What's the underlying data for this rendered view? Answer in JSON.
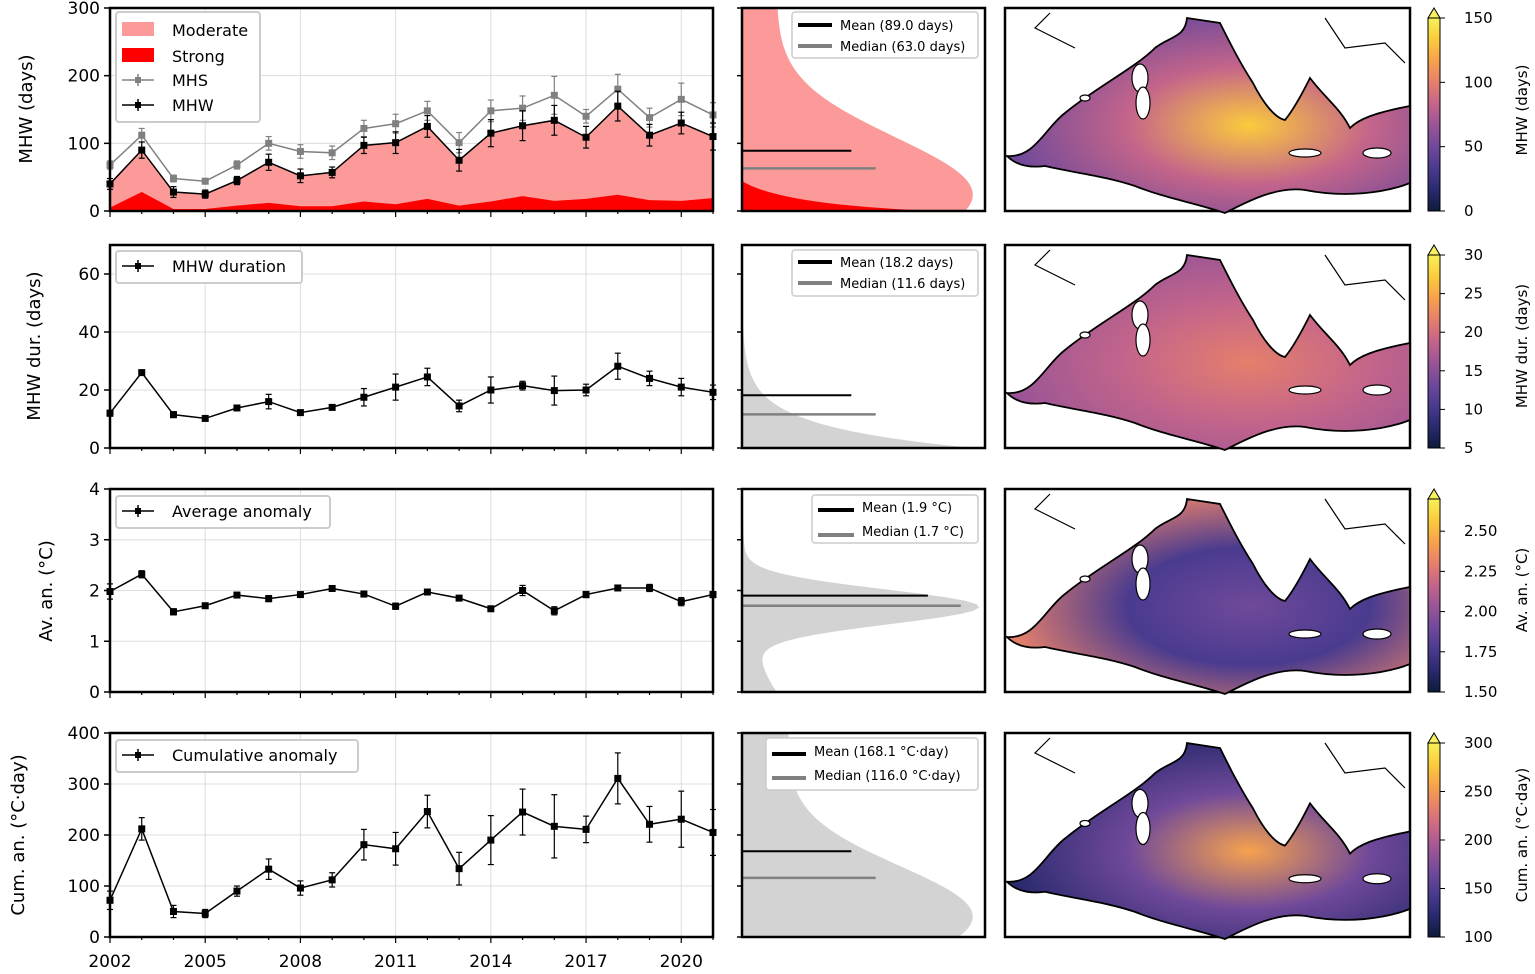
{
  "colors": {
    "moderate": "#fb9a99",
    "strong": "#ff0000",
    "mhs": "#808080",
    "mhw": "#000000",
    "hist_grey": "#d3d3d3",
    "mean_line": "#000000",
    "median_line": "#808080",
    "land": "#ffffff",
    "coast": "#000000"
  },
  "colormap": [
    "#0d1b3a",
    "#2a2a6e",
    "#4a3b8f",
    "#70499a",
    "#9a5596",
    "#c4658a",
    "#e57f6c",
    "#f6a24d",
    "#fbcb3c",
    "#f6f15a"
  ],
  "x_ticks": [
    "2002",
    "2005",
    "2008",
    "2011",
    "2014",
    "2017",
    "2020"
  ],
  "chart_data": [
    {
      "type": "area",
      "id": "mhw_days",
      "title": "",
      "ylabel": "MHW (days)",
      "ylim": [
        0,
        300
      ],
      "yticks": [
        "0",
        "100",
        "200",
        "300"
      ],
      "x": [
        2002,
        2003,
        2004,
        2005,
        2006,
        2007,
        2008,
        2009,
        2010,
        2011,
        2012,
        2013,
        2014,
        2015,
        2016,
        2017,
        2018,
        2019,
        2020,
        2021
      ],
      "legend": [
        "Moderate",
        "Strong",
        "MHS",
        "MHW"
      ],
      "series": [
        {
          "name": "Moderate",
          "values": [
            40,
            90,
            28,
            25,
            45,
            72,
            52,
            57,
            97,
            101,
            125,
            75,
            115,
            126,
            134,
            109,
            155,
            112,
            130,
            110
          ]
        },
        {
          "name": "Strong",
          "values": [
            5,
            28,
            3,
            3,
            8,
            12,
            7,
            7,
            14,
            10,
            18,
            8,
            14,
            22,
            15,
            18,
            24,
            16,
            15,
            19
          ]
        },
        {
          "name": "MHS",
          "values": [
            68,
            112,
            48,
            44,
            68,
            100,
            88,
            86,
            122,
            129,
            148,
            101,
            148,
            152,
            171,
            140,
            180,
            138,
            165,
            142
          ],
          "errors": [
            6,
            10,
            5,
            4,
            6,
            10,
            10,
            10,
            12,
            14,
            14,
            15,
            16,
            18,
            28,
            10,
            22,
            14,
            24,
            18
          ]
        },
        {
          "name": "MHW",
          "values": [
            40,
            90,
            28,
            25,
            45,
            72,
            52,
            57,
            97,
            101,
            125,
            75,
            115,
            126,
            134,
            109,
            155,
            112,
            130,
            110
          ],
          "errors": [
            8,
            12,
            8,
            6,
            6,
            12,
            10,
            8,
            12,
            16,
            16,
            16,
            20,
            22,
            22,
            16,
            22,
            16,
            16,
            20
          ]
        }
      ],
      "histogram": {
        "mean_label": "Mean (89.0 days)",
        "median_label": "Median (63.0 days)",
        "mean": 89.0,
        "median": 63.0
      },
      "map": {
        "colorbar_label": "MHW (days)",
        "cbar_ticks": [
          "0",
          "50",
          "100",
          "150"
        ],
        "cbar_min": 0,
        "cbar_max": 150
      }
    },
    {
      "type": "line",
      "id": "mhw_duration",
      "ylabel": "MHW dur. (days)",
      "ylim": [
        0,
        70
      ],
      "yticks": [
        "0",
        "20",
        "40",
        "60"
      ],
      "x": [
        2002,
        2003,
        2004,
        2005,
        2006,
        2007,
        2008,
        2009,
        2010,
        2011,
        2012,
        2013,
        2014,
        2015,
        2016,
        2017,
        2018,
        2019,
        2020,
        2021
      ],
      "series": [
        {
          "name": "MHW duration",
          "values": [
            12,
            26,
            11.5,
            10.2,
            13.8,
            16,
            12.2,
            14,
            17.5,
            21,
            24.5,
            14.5,
            20,
            21.5,
            19.8,
            20,
            28.2,
            24,
            21,
            19.2
          ],
          "errors": [
            1,
            0.8,
            1,
            0.6,
            0.8,
            2.5,
            0.8,
            0.8,
            3,
            4.5,
            3,
            2,
            4.5,
            1.5,
            5,
            2,
            4.5,
            2.5,
            3,
            2.5
          ]
        }
      ],
      "histogram": {
        "mean_label": "Mean (18.2 days)",
        "median_label": "Median (11.6 days)",
        "mean": 18.2,
        "median": 11.6
      },
      "map": {
        "colorbar_label": "MHW dur. (days)",
        "cbar_ticks": [
          "5",
          "10",
          "15",
          "20",
          "25",
          "30"
        ],
        "cbar_min": 5,
        "cbar_max": 30
      }
    },
    {
      "type": "line",
      "id": "avg_anomaly",
      "ylabel": "Av. an. (°C)",
      "ylim": [
        0,
        4
      ],
      "yticks": [
        "0",
        "1",
        "2",
        "3",
        "4"
      ],
      "x": [
        2002,
        2003,
        2004,
        2005,
        2006,
        2007,
        2008,
        2009,
        2010,
        2011,
        2012,
        2013,
        2014,
        2015,
        2016,
        2017,
        2018,
        2019,
        2020,
        2021
      ],
      "series": [
        {
          "name": "Average anomaly",
          "values": [
            1.98,
            2.32,
            1.58,
            1.7,
            1.91,
            1.84,
            1.92,
            2.04,
            1.93,
            1.69,
            1.97,
            1.85,
            1.64,
            2.0,
            1.6,
            1.92,
            2.05,
            2.05,
            1.78,
            1.92
          ],
          "errors": [
            0.15,
            0.07,
            0.06,
            0.05,
            0.04,
            0.06,
            0.04,
            0.05,
            0.05,
            0.06,
            0.05,
            0.05,
            0.05,
            0.1,
            0.08,
            0.06,
            0.05,
            0.07,
            0.08,
            0.06
          ]
        }
      ],
      "histogram": {
        "mean_label": "Mean (1.9 °C)",
        "median_label": "Median (1.7 °C)",
        "mean": 1.9,
        "median": 1.7
      },
      "map": {
        "colorbar_label": "Av. an. (°C)",
        "cbar_ticks": [
          "1.50",
          "1.75",
          "2.00",
          "2.25",
          "2.50"
        ],
        "cbar_min": 1.5,
        "cbar_max": 2.7
      }
    },
    {
      "type": "line",
      "id": "cum_anomaly",
      "ylabel": "Cum. an. (°C·day)",
      "ylim": [
        0,
        400
      ],
      "yticks": [
        "0",
        "100",
        "200",
        "300",
        "400"
      ],
      "x": [
        2002,
        2003,
        2004,
        2005,
        2006,
        2007,
        2008,
        2009,
        2010,
        2011,
        2012,
        2013,
        2014,
        2015,
        2016,
        2017,
        2018,
        2019,
        2020,
        2021
      ],
      "series": [
        {
          "name": "Cumulative anomaly",
          "values": [
            72,
            212,
            50,
            46,
            90,
            133,
            96,
            112,
            181,
            173,
            246,
            134,
            190,
            245,
            217,
            211,
            311,
            221,
            231,
            205
          ],
          "errors": [
            18,
            22,
            12,
            8,
            10,
            20,
            14,
            14,
            30,
            32,
            32,
            32,
            48,
            45,
            62,
            26,
            50,
            35,
            55,
            45
          ]
        }
      ],
      "histogram": {
        "mean_label": "Mean (168.1 °C·day)",
        "median_label": "Median (116.0 °C·day)",
        "mean": 168.1,
        "median": 116.0
      },
      "map": {
        "colorbar_label": "Cum. an. (°C·day)",
        "cbar_ticks": [
          "100",
          "150",
          "200",
          "250",
          "300"
        ],
        "cbar_min": 100,
        "cbar_max": 300
      }
    }
  ]
}
